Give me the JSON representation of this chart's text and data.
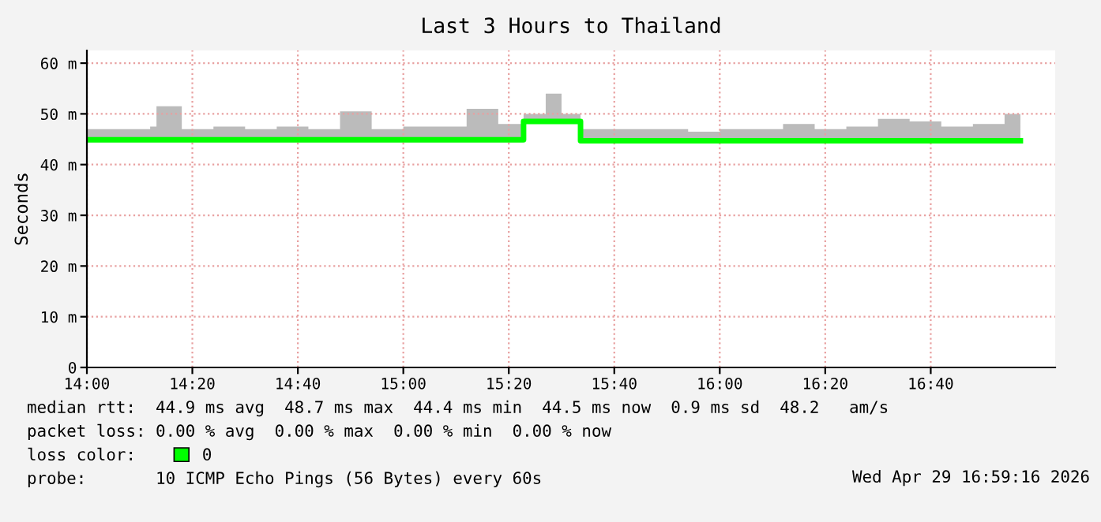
{
  "chart_data": {
    "type": "step",
    "title": "Last 3 Hours to Thailand",
    "ylabel": "Seconds",
    "x": [
      14.0,
      14.1,
      14.2,
      14.22,
      14.3,
      14.4,
      14.5,
      14.6,
      14.7,
      14.8,
      14.9,
      15.0,
      15.1,
      15.2,
      15.3,
      15.38,
      15.45,
      15.5,
      15.56,
      15.7,
      15.8,
      15.9,
      16.0,
      16.1,
      16.2,
      16.3,
      16.4,
      16.5,
      16.6,
      16.7,
      16.8,
      16.9,
      16.95
    ],
    "series": [
      {
        "name": "0",
        "color": "#00ff00",
        "values": [
          44.9,
          44.9,
          44.9,
          44.9,
          44.9,
          44.9,
          44.9,
          44.9,
          44.9,
          44.9,
          44.9,
          44.9,
          44.9,
          44.9,
          44.9,
          48.5,
          48.5,
          48.5,
          44.7,
          44.7,
          44.7,
          44.7,
          44.7,
          44.7,
          44.7,
          44.7,
          44.7,
          44.7,
          44.7,
          44.7,
          44.7,
          44.7,
          44.7
        ],
        "lower": [
          44.4,
          44.4,
          44.4,
          44.4,
          44.4,
          44.4,
          44.4,
          44.4,
          44.4,
          44.4,
          44.4,
          44.4,
          44.4,
          44.4,
          44.4,
          48.4,
          48.4,
          48.4,
          44.4,
          44.4,
          44.4,
          44.4,
          44.4,
          44.4,
          44.4,
          44.4,
          44.4,
          44.4,
          44.4,
          44.4,
          44.4,
          44.4,
          44.4
        ],
        "upper": [
          47,
          47,
          47.5,
          51.5,
          47,
          47.5,
          47,
          47.5,
          47,
          50.5,
          47,
          47.5,
          47.5,
          51,
          48,
          50,
          54,
          50,
          47,
          47,
          47,
          46.5,
          47,
          47,
          48,
          47,
          47.5,
          49,
          48.5,
          47.5,
          48,
          50,
          50
        ]
      }
    ],
    "xlim": [
      14.0,
      17.06
    ],
    "xticks": [
      {
        "value": 14.0,
        "label": "14:00"
      },
      {
        "value": 14.3333,
        "label": "14:20"
      },
      {
        "value": 14.6667,
        "label": "14:40"
      },
      {
        "value": 15.0,
        "label": "15:00"
      },
      {
        "value": 15.3333,
        "label": "15:20"
      },
      {
        "value": 15.6667,
        "label": "15:40"
      },
      {
        "value": 16.0,
        "label": "16:00"
      },
      {
        "value": 16.3333,
        "label": "16:20"
      },
      {
        "value": 16.6667,
        "label": "16:40"
      }
    ],
    "ylim": [
      0,
      62.5
    ],
    "yticks": [
      0,
      {
        "value": 10,
        "label": "10 m"
      },
      {
        "value": 20,
        "label": "20 m"
      },
      {
        "value": 30,
        "label": "30 m"
      },
      {
        "value": 40,
        "label": "40 m"
      },
      {
        "value": 50,
        "label": "50 m"
      },
      {
        "value": 60,
        "label": "60 m"
      }
    ],
    "grid": true,
    "legend": "bottom left",
    "annotations": [
      "median rtt:  44.9 ms avg  48.7 ms max  44.4 ms min  44.5 ms now  0.9 ms sd  48.2   am/s",
      "packet loss: 0.00 % avg  0.00 % max  0.00 % min  0.00 % now",
      "loss color:",
      "probe:       10 ICMP Echo Pings (56 Bytes) every 60s",
      "Wed Apr 29 16:59:16 2026"
    ]
  }
}
